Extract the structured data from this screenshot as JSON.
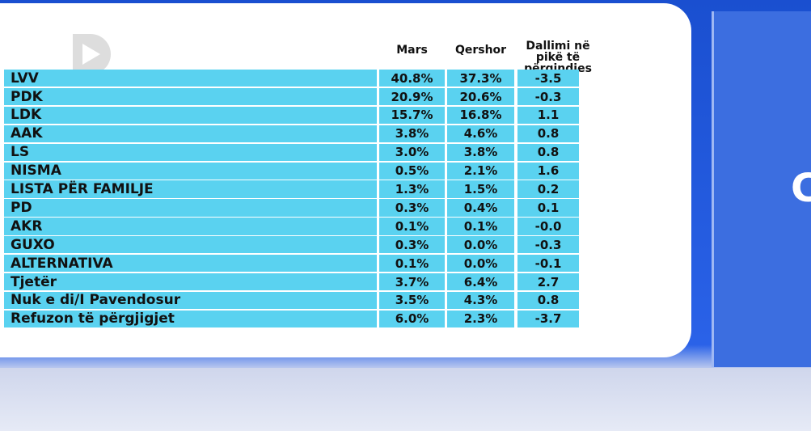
{
  "table": {
    "header": [
      "Mars",
      "Qershor",
      "Dallimi në pikë të përqindjes"
    ],
    "rows": [
      [
        "LVV",
        "40.8%",
        "37.3%",
        "-3.5"
      ],
      [
        "PDK",
        "20.9%",
        "20.6%",
        "-0.3"
      ],
      [
        "LDK",
        "15.7%",
        "16.8%",
        "1.1"
      ],
      [
        "AAK",
        "3.8%",
        "4.6%",
        "0.8"
      ],
      [
        "LS",
        "3.0%",
        "3.8%",
        "0.8"
      ],
      [
        "NISMA",
        "0.5%",
        "2.1%",
        "1.6"
      ],
      [
        "LISTA PËR FAMILJE",
        "1.3%",
        "1.5%",
        "0.2"
      ],
      [
        "PD",
        "0.3%",
        "0.4%",
        "0.1"
      ],
      [
        "AKR",
        "0.1%",
        "0.1%",
        "-0.0"
      ],
      [
        "GUXO",
        "0.3%",
        "0.0%",
        "-0.3"
      ],
      [
        "ALTERNATIVA",
        "0.1%",
        "0.0%",
        "-0.1"
      ],
      [
        "Tjetër",
        "3.7%",
        "6.4%",
        "2.7"
      ],
      [
        "Nuk e di/I Pavendosur",
        "3.5%",
        "4.3%",
        "0.8"
      ],
      [
        "Refuzon të përgjigjet",
        "6.0%",
        "2.3%",
        "-3.7"
      ]
    ]
  },
  "side_text": "C"
}
